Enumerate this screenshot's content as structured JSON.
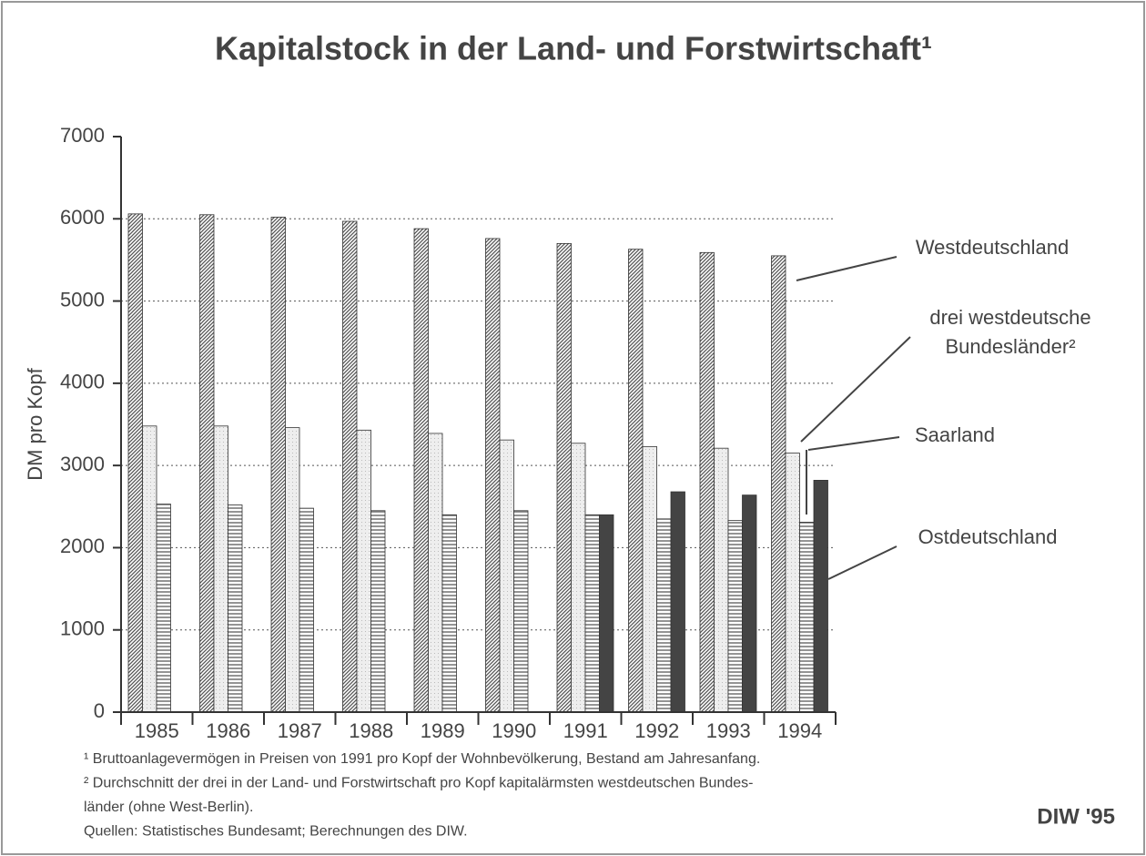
{
  "chart_data": {
    "type": "bar",
    "title": "Kapitalstock in der Land- und Forstwirtschaft¹",
    "y_label": "DM pro Kopf",
    "categories": [
      "1985",
      "1986",
      "1987",
      "1988",
      "1989",
      "1990",
      "1991",
      "1992",
      "1993",
      "1994"
    ],
    "series": [
      {
        "name": "Westdeutschland",
        "color": "#555555",
        "values": [
          6060,
          6050,
          6020,
          5970,
          5880,
          5760,
          5700,
          5630,
          5590,
          5550
        ]
      },
      {
        "name": "drei westdeutsche Bundesländer²",
        "color": "#bbbbbb",
        "values": [
          3480,
          3480,
          3460,
          3430,
          3390,
          3310,
          3270,
          3230,
          3210,
          3150
        ]
      },
      {
        "name": "Saarland",
        "color": "#666666",
        "values": [
          2530,
          2520,
          2480,
          2450,
          2400,
          2450,
          2400,
          2350,
          2330,
          2310
        ]
      },
      {
        "name": "Ostdeutschland",
        "color": "#444444",
        "values": [
          null,
          null,
          null,
          null,
          null,
          null,
          2400,
          2680,
          2640,
          2820
        ]
      }
    ],
    "ylim": [
      0,
      7000
    ],
    "yticks": [
      0,
      1000,
      2000,
      3000,
      4000,
      5000,
      6000,
      7000
    ],
    "grid": true,
    "notes": [
      "¹ Bruttoanlagevermögen in Preisen von 1991 pro Kopf der Wohnbevölkerung, Bestand am Jahresanfang.",
      "² Durchschnitt der drei in der Land- und Forstwirtschaft pro Kopf kapitalärmsten westdeutschen Bundes-",
      "länder (ohne West-Berlin).",
      "Quellen: Statistisches Bundesamt; Berechnungen des DIW."
    ],
    "credit": "DIW '95"
  }
}
